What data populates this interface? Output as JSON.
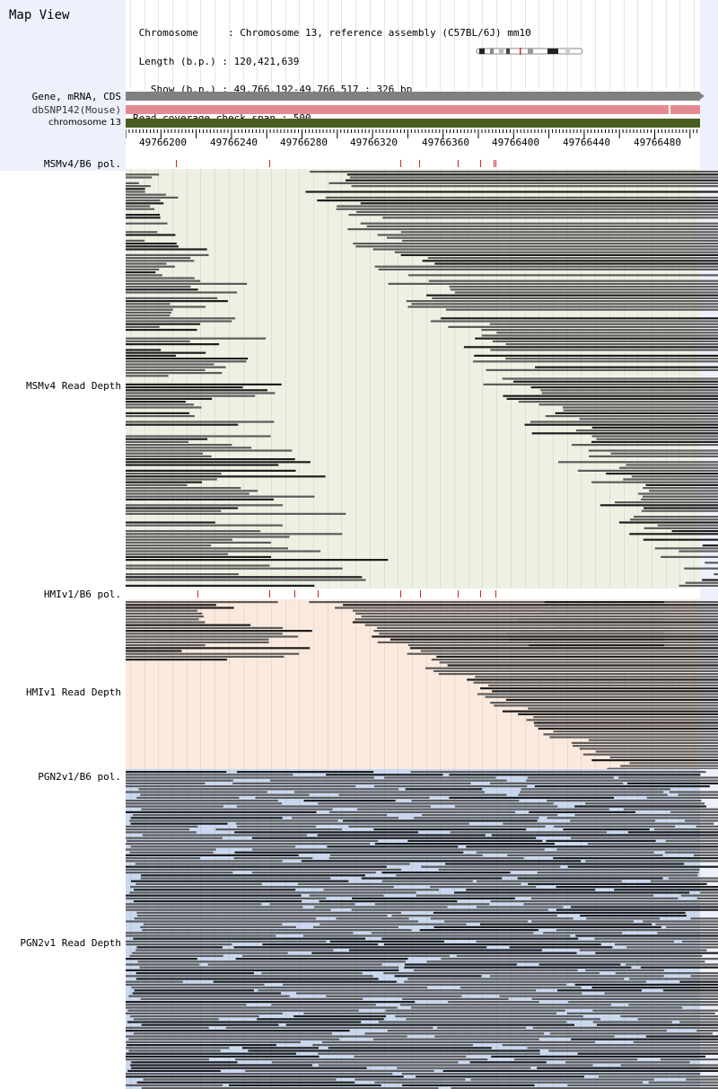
{
  "header": {
    "title": "Map View",
    "info_lines": [
      " Chromosome     : Chromosome 13, reference assembly (C57BL/6J) mm10",
      " Length (b.p.) : 120,421,639",
      "   Show (b.p.) : 49,766,192-49,766,517 : 326 bp",
      "Read coverage check span : 500"
    ]
  },
  "tracks": {
    "gene_label": "Gene, mRNA, CDS",
    "snp_label": "dbSNP142(Mouse)",
    "chrom_label": "chromosome 13"
  },
  "ruler": {
    "ticks": [
      "49766200",
      "49766240",
      "49766280",
      "49766320",
      "49766360",
      "49766400",
      "49766440",
      "49766480"
    ]
  },
  "panels": [
    {
      "pol_label": "MSMv4/B6 pol.",
      "depth_label": "MSMv4 Read Depth",
      "bg": "#edf1e3"
    },
    {
      "pol_label": "HMIv1/B6 pol.",
      "depth_label": "HMIv1 Read Depth",
      "bg": "#fbe9dd"
    },
    {
      "pol_label": "PGN2v1/B6 pol.",
      "depth_label": "PGN2v1 Read Depth",
      "bg": "#c9d8ee"
    }
  ],
  "colors": {
    "gene_bar": "#808080",
    "snp_bar": "#e58a92",
    "chrom_bar": "#4a5e1f",
    "read_dark": "#1e1e1e",
    "read_gray": "#5c5c5c",
    "polymorphism": "#c62828"
  }
}
